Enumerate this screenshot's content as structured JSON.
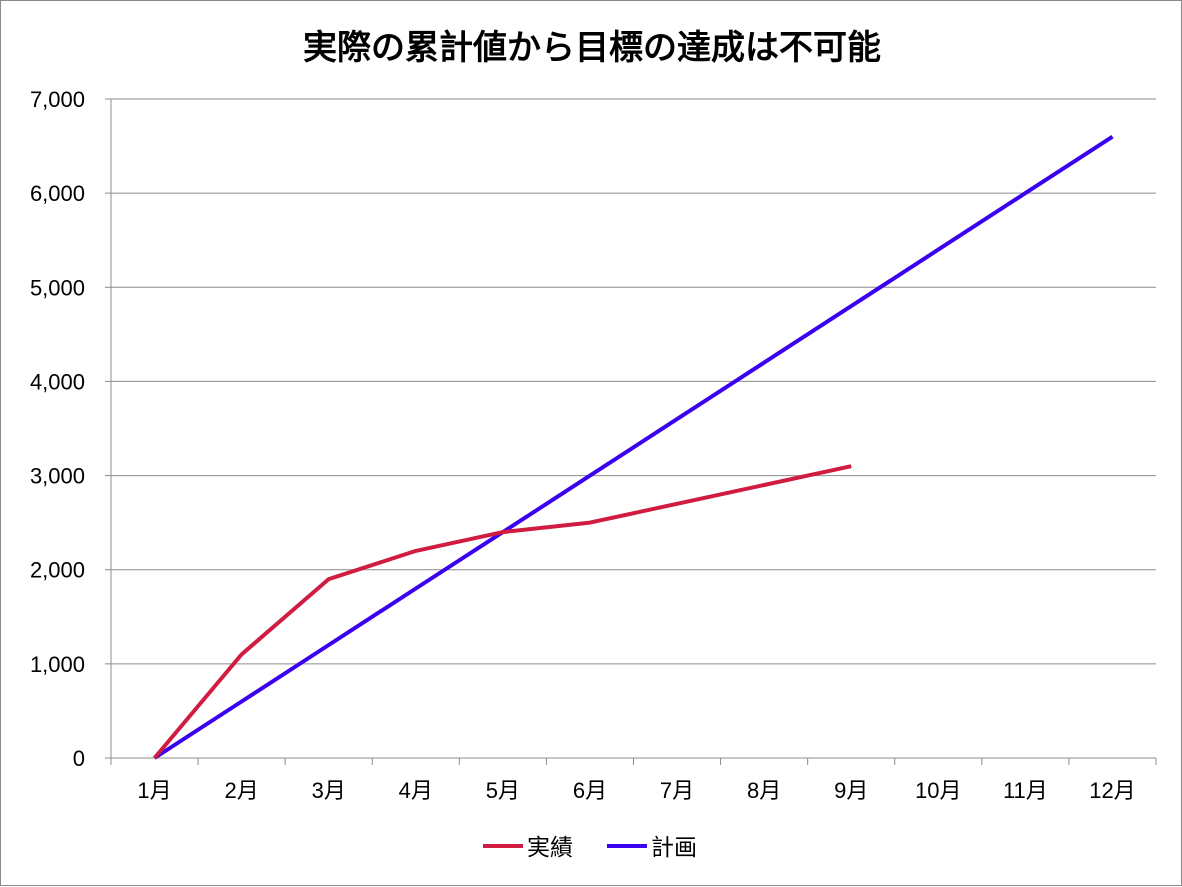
{
  "chart_data": {
    "type": "line",
    "title": "実際の累計値から目標の達成は不可能",
    "categories": [
      "1月",
      "2月",
      "3月",
      "4月",
      "5月",
      "6月",
      "7月",
      "8月",
      "9月",
      "10月",
      "11月",
      "12月"
    ],
    "series": [
      {
        "name": "実績",
        "color": "#d01c40",
        "values": [
          0,
          1100,
          1900,
          2200,
          2400,
          2500,
          2700,
          2900,
          3100,
          null,
          null,
          null
        ]
      },
      {
        "name": "計画",
        "color": "#3a00f0",
        "values": [
          0,
          600,
          1200,
          1800,
          2400,
          3000,
          3600,
          4200,
          4800,
          5400,
          6000,
          6600
        ]
      }
    ],
    "y_ticks": [
      "0",
      "1,000",
      "2,000",
      "3,000",
      "4,000",
      "5,000",
      "6,000",
      "7,000"
    ],
    "ylim": [
      0,
      7000
    ],
    "grid": true,
    "legend_position": "bottom",
    "xlabel": "",
    "ylabel": ""
  }
}
